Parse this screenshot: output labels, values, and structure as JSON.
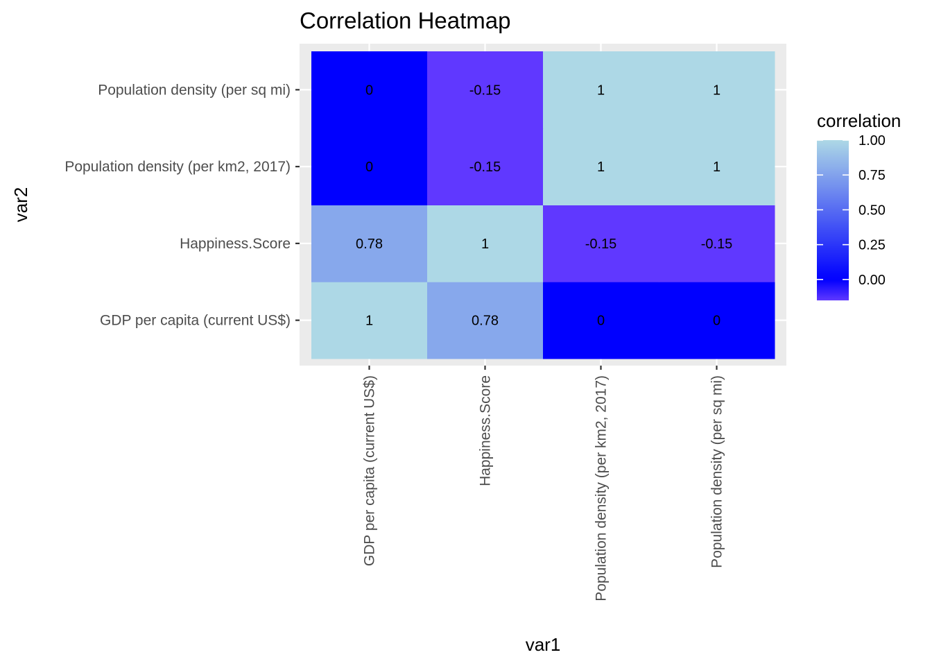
{
  "chart_data": {
    "type": "heatmap",
    "title": "Correlation Heatmap",
    "xlabel": "var1",
    "ylabel": "var2",
    "x_categories": [
      "GDP per capita (current US$)",
      "Happiness.Score",
      "Population density (per km2, 2017)",
      "Population density (per sq mi)"
    ],
    "y_categories": [
      "GDP per capita (current US$)",
      "Happiness.Score",
      "Population density (per km2, 2017)",
      "Population density (per sq mi)"
    ],
    "cells": [
      {
        "x": "GDP per capita (current US$)",
        "y": "GDP per capita (current US$)",
        "value": 1,
        "label": "1"
      },
      {
        "x": "Happiness.Score",
        "y": "GDP per capita (current US$)",
        "value": 0.78,
        "label": "0.78"
      },
      {
        "x": "Population density (per km2, 2017)",
        "y": "GDP per capita (current US$)",
        "value": 0,
        "label": "0"
      },
      {
        "x": "Population density (per sq mi)",
        "y": "GDP per capita (current US$)",
        "value": 0,
        "label": "0"
      },
      {
        "x": "GDP per capita (current US$)",
        "y": "Happiness.Score",
        "value": 0.78,
        "label": "0.78"
      },
      {
        "x": "Happiness.Score",
        "y": "Happiness.Score",
        "value": 1,
        "label": "1"
      },
      {
        "x": "Population density (per km2, 2017)",
        "y": "Happiness.Score",
        "value": -0.15,
        "label": "-0.15"
      },
      {
        "x": "Population density (per sq mi)",
        "y": "Happiness.Score",
        "value": -0.15,
        "label": "-0.15"
      },
      {
        "x": "GDP per capita (current US$)",
        "y": "Population density (per km2, 2017)",
        "value": 0,
        "label": "0"
      },
      {
        "x": "Happiness.Score",
        "y": "Population density (per km2, 2017)",
        "value": -0.15,
        "label": "-0.15"
      },
      {
        "x": "Population density (per km2, 2017)",
        "y": "Population density (per km2, 2017)",
        "value": 1,
        "label": "1"
      },
      {
        "x": "Population density (per sq mi)",
        "y": "Population density (per km2, 2017)",
        "value": 1,
        "label": "1"
      },
      {
        "x": "GDP per capita (current US$)",
        "y": "Population density (per sq mi)",
        "value": 0,
        "label": "0"
      },
      {
        "x": "Happiness.Score",
        "y": "Population density (per sq mi)",
        "value": -0.15,
        "label": "-0.15"
      },
      {
        "x": "Population density (per km2, 2017)",
        "y": "Population density (per sq mi)",
        "value": 1,
        "label": "1"
      },
      {
        "x": "Population density (per sq mi)",
        "y": "Population density (per sq mi)",
        "value": 1,
        "label": "1"
      }
    ],
    "legend": {
      "title": "correlation",
      "position": "right",
      "ticks": [
        {
          "value": 0,
          "label": "0.00"
        },
        {
          "value": 0.25,
          "label": "0.25"
        },
        {
          "value": 0.5,
          "label": "0.50"
        },
        {
          "value": 0.75,
          "label": "0.75"
        },
        {
          "value": 1,
          "label": "1.00"
        }
      ],
      "range": [
        -0.15,
        1
      ]
    },
    "color_scale": {
      "low_color": "#6038ff",
      "zero_color": "#0000ff",
      "high_color": "#add8e6"
    },
    "panel_background": "#ebebeb",
    "grid": true
  }
}
